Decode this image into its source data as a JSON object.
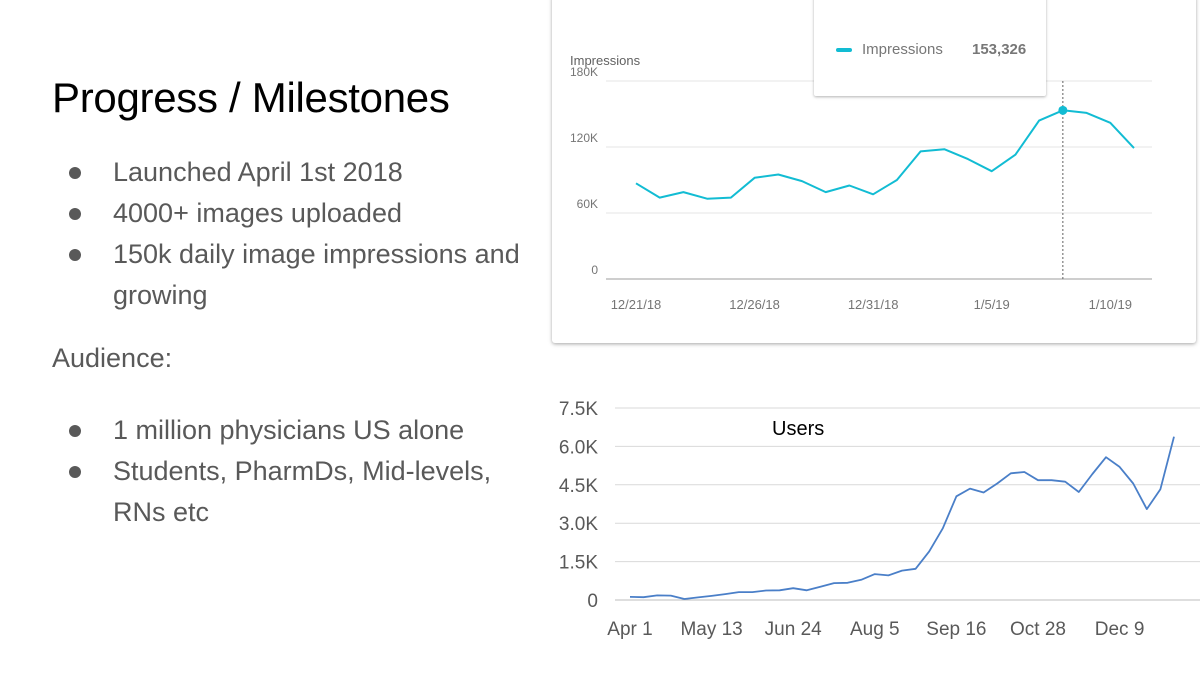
{
  "title": "Progress / Milestones",
  "milestones": [
    "Launched April 1st 2018",
    "4000+ images uploaded",
    "150k daily image impressions and growing"
  ],
  "audience_label": "Audience:",
  "audience": [
    "1 million physicians US alone",
    "Students, PharmDs, Mid-levels, RNs etc"
  ],
  "colors": {
    "impressions_line": "#12bcd3",
    "users_line": "#4a7fc8",
    "text_gray": "#595959"
  },
  "chart_data": [
    {
      "type": "line",
      "ylabel": "Impressions",
      "ylim": [
        0,
        180000
      ],
      "yticks": [
        0,
        60000,
        120000,
        180000
      ],
      "ytick_labels": [
        "0",
        "60K",
        "120K",
        "180K"
      ],
      "x": [
        "12/21/18",
        "12/22/18",
        "12/23/18",
        "12/24/18",
        "12/25/18",
        "12/26/18",
        "12/27/18",
        "12/28/18",
        "12/29/18",
        "12/30/18",
        "12/31/18",
        "1/1/19",
        "1/2/19",
        "1/3/19",
        "1/4/19",
        "1/5/19",
        "1/6/19",
        "1/7/19",
        "1/8/19",
        "1/9/19",
        "1/10/19",
        "1/11/19"
      ],
      "xtick_labels": [
        "12/21/18",
        "12/26/18",
        "12/31/18",
        "1/5/19",
        "1/10/19"
      ],
      "xtick_index": [
        0,
        5,
        10,
        15,
        20
      ],
      "series": [
        {
          "name": "Impressions",
          "values": [
            87000,
            74000,
            79000,
            73000,
            74000,
            92000,
            95000,
            89000,
            79000,
            85000,
            77000,
            90000,
            116000,
            118000,
            109000,
            98000,
            113000,
            144000,
            153326,
            151000,
            142000,
            119000
          ]
        }
      ],
      "highlight": {
        "index": 18,
        "series": "Impressions",
        "value_label": "153,326"
      },
      "grid": true,
      "legend": "tooltip"
    },
    {
      "type": "line",
      "title": "Users",
      "ylim": [
        0,
        7500
      ],
      "yticks": [
        0,
        1500,
        3000,
        4500,
        6000,
        7500
      ],
      "ytick_labels": [
        "0",
        "1.5K",
        "3.0K",
        "4.5K",
        "6.0K",
        "7.5K"
      ],
      "xtick_labels": [
        "Apr 1",
        "May 13",
        "Jun 24",
        "Aug 5",
        "Sep 16",
        "Oct 28",
        "Dec 9"
      ],
      "xtick_index": [
        0,
        6,
        12,
        18,
        24,
        30,
        36
      ],
      "series": [
        {
          "name": "Users",
          "values": [
            120,
            110,
            180,
            170,
            40,
            100,
            160,
            230,
            310,
            310,
            370,
            380,
            460,
            380,
            520,
            660,
            670,
            790,
            1010,
            960,
            1150,
            1220,
            1900,
            2800,
            4050,
            4350,
            4200,
            4550,
            4950,
            5000,
            4680,
            4680,
            4620,
            4220,
            4920,
            5580,
            5200,
            4550,
            3550,
            4330,
            6380
          ]
        }
      ],
      "grid": true,
      "legend": "none"
    }
  ]
}
